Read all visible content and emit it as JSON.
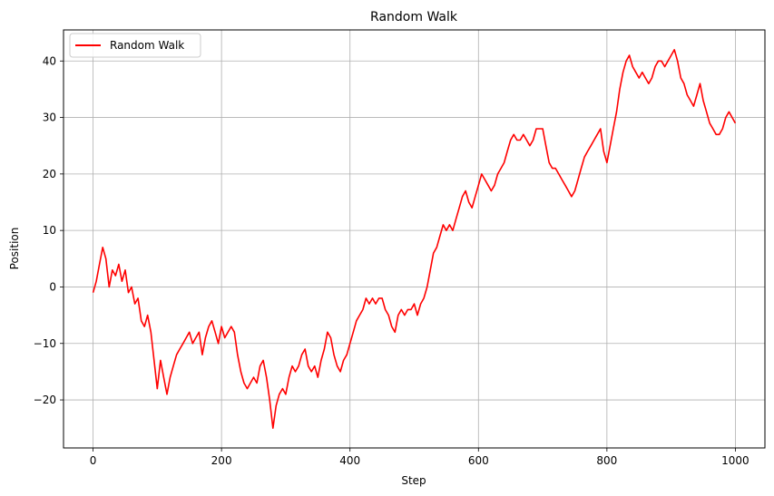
{
  "chart_data": {
    "type": "line",
    "title": "Random Walk",
    "xlabel": "Step",
    "ylabel": "Position",
    "xlim": [
      -46,
      1046
    ],
    "ylim": [
      -28.5,
      45.5
    ],
    "xticks": [
      0,
      200,
      400,
      600,
      800,
      1000
    ],
    "yticks": [
      -20,
      -10,
      0,
      10,
      20,
      30,
      40
    ],
    "grid": true,
    "legend": "upper-left",
    "series": [
      {
        "name": "Random Walk",
        "color": "#ff0000",
        "x": [
          0,
          5,
          10,
          15,
          20,
          25,
          30,
          35,
          40,
          45,
          50,
          55,
          60,
          65,
          70,
          75,
          80,
          85,
          90,
          95,
          100,
          105,
          110,
          115,
          120,
          125,
          130,
          135,
          140,
          145,
          150,
          155,
          160,
          165,
          170,
          175,
          180,
          185,
          190,
          195,
          200,
          205,
          210,
          215,
          220,
          225,
          230,
          235,
          240,
          245,
          250,
          255,
          260,
          265,
          270,
          275,
          280,
          285,
          290,
          295,
          300,
          305,
          310,
          315,
          320,
          325,
          330,
          335,
          340,
          345,
          350,
          355,
          360,
          365,
          370,
          375,
          380,
          385,
          390,
          395,
          400,
          405,
          410,
          415,
          420,
          425,
          430,
          435,
          440,
          445,
          450,
          455,
          460,
          465,
          470,
          475,
          480,
          485,
          490,
          495,
          500,
          505,
          510,
          515,
          520,
          525,
          530,
          535,
          540,
          545,
          550,
          555,
          560,
          565,
          570,
          575,
          580,
          585,
          590,
          595,
          600,
          605,
          610,
          615,
          620,
          625,
          630,
          635,
          640,
          645,
          650,
          655,
          660,
          665,
          670,
          675,
          680,
          685,
          690,
          695,
          700,
          705,
          710,
          715,
          720,
          725,
          730,
          735,
          740,
          745,
          750,
          755,
          760,
          765,
          770,
          775,
          780,
          785,
          790,
          795,
          800,
          805,
          810,
          815,
          820,
          825,
          830,
          835,
          840,
          845,
          850,
          855,
          860,
          865,
          870,
          875,
          880,
          885,
          890,
          895,
          900,
          905,
          910,
          915,
          920,
          925,
          930,
          935,
          940,
          945,
          950,
          955,
          960,
          965,
          970,
          975,
          980,
          985,
          990,
          995,
          1000
        ],
        "y": [
          -1,
          1,
          4,
          7,
          5,
          0,
          3,
          2,
          4,
          1,
          3,
          -1,
          0,
          -3,
          -2,
          -6,
          -7,
          -5,
          -8,
          -13,
          -18,
          -13,
          -16,
          -19,
          -16,
          -14,
          -12,
          -11,
          -10,
          -9,
          -8,
          -10,
          -9,
          -8,
          -12,
          -9,
          -7,
          -6,
          -8,
          -10,
          -7,
          -9,
          -8,
          -7,
          -8,
          -12,
          -15,
          -17,
          -18,
          -17,
          -16,
          -17,
          -14,
          -13,
          -16,
          -20,
          -25,
          -21,
          -19,
          -18,
          -19,
          -16,
          -14,
          -15,
          -14,
          -12,
          -11,
          -14,
          -15,
          -14,
          -16,
          -13,
          -11,
          -8,
          -9,
          -12,
          -14,
          -15,
          -13,
          -12,
          -10,
          -8,
          -6,
          -5,
          -4,
          -2,
          -3,
          -2,
          -3,
          -2,
          -2,
          -4,
          -5,
          -7,
          -8,
          -5,
          -4,
          -5,
          -4,
          -4,
          -3,
          -5,
          -3,
          -2,
          0,
          3,
          6,
          7,
          9,
          11,
          10,
          11,
          10,
          12,
          14,
          16,
          17,
          15,
          14,
          16,
          18,
          20,
          19,
          18,
          17,
          18,
          20,
          21,
          22,
          24,
          26,
          27,
          26,
          26,
          27,
          26,
          25,
          26,
          28,
          28,
          28,
          25,
          22,
          21,
          21,
          20,
          19,
          18,
          17,
          16,
          17,
          19,
          21,
          23,
          24,
          25,
          26,
          27,
          28,
          24,
          22,
          25,
          28,
          31,
          35,
          38,
          40,
          41,
          39,
          38,
          37,
          38,
          37,
          36,
          37,
          39,
          40,
          40,
          39,
          40,
          41,
          42,
          40,
          37,
          36,
          34,
          33,
          32,
          34,
          36,
          33,
          31,
          29,
          28,
          27,
          27,
          28,
          30,
          31,
          30,
          29
        ]
      }
    ]
  }
}
